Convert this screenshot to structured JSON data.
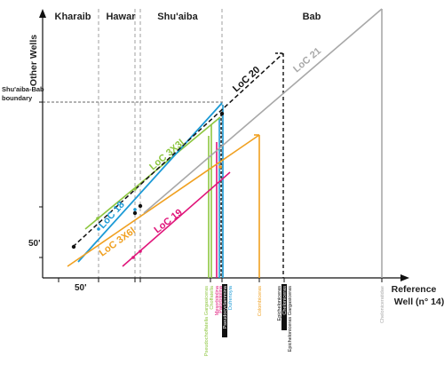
{
  "axes": {
    "y_title": "Other Wells",
    "x_title_line1": "Reference",
    "x_title_line2": "Well  (n° 14)",
    "x_scale": "50'",
    "y_scale": "50'"
  },
  "units": [
    {
      "name": "Kharaib"
    },
    {
      "name": "Hawar"
    },
    {
      "name": "Shu'aiba"
    },
    {
      "name": "Bab"
    }
  ],
  "boundary": {
    "line1": "Shu'aiba-Bab",
    "line2": "boundary"
  },
  "lines": [
    {
      "label": "LoC 3X3l",
      "color": "#8dc63f",
      "style": "solid"
    },
    {
      "label": "LoC 18",
      "color": "#1b9ad6",
      "style": "solid"
    },
    {
      "label": "LoC 3X6l",
      "color": "#f0a020",
      "style": "solid"
    },
    {
      "label": "LoC 19",
      "color": "#e0157a",
      "style": "solid"
    },
    {
      "label": "LoC 20",
      "color": "#111111",
      "style": "dashed"
    },
    {
      "label": "LoC 21",
      "color": "#a8a8a8",
      "style": "solid"
    }
  ],
  "taxa": [
    {
      "label": "Pseudochoffatella Gargasiceras",
      "color": "#8dc63f",
      "highlight": false
    },
    {
      "label": "Choffatella",
      "color": "#8dc63f",
      "highlight": false
    },
    {
      "label": "Mesorbitolina",
      "color": "#e0157a",
      "highlight": false
    },
    {
      "label": "Palorbitolina",
      "color": "#e0157a",
      "highlight": false
    },
    {
      "label": "Pseudocyclammina",
      "color": "#ffffff",
      "highlight": true
    },
    {
      "label": "Dufrenoyia",
      "color": "#1b9ad6",
      "highlight": false
    },
    {
      "label": "Colombiceras",
      "color": "#f0a020",
      "highlight": false
    },
    {
      "label": "Epicheloniceras",
      "color": "#111111",
      "highlight": false
    },
    {
      "label": "Cheloniceras",
      "color": "#ffffff",
      "highlight": true
    },
    {
      "label": "Epicheloniceras Gargasiceras",
      "color": "#111111",
      "highlight": false
    },
    {
      "label": "Cheloniceratidae",
      "color": "#a8a8a8",
      "highlight": false
    }
  ]
}
